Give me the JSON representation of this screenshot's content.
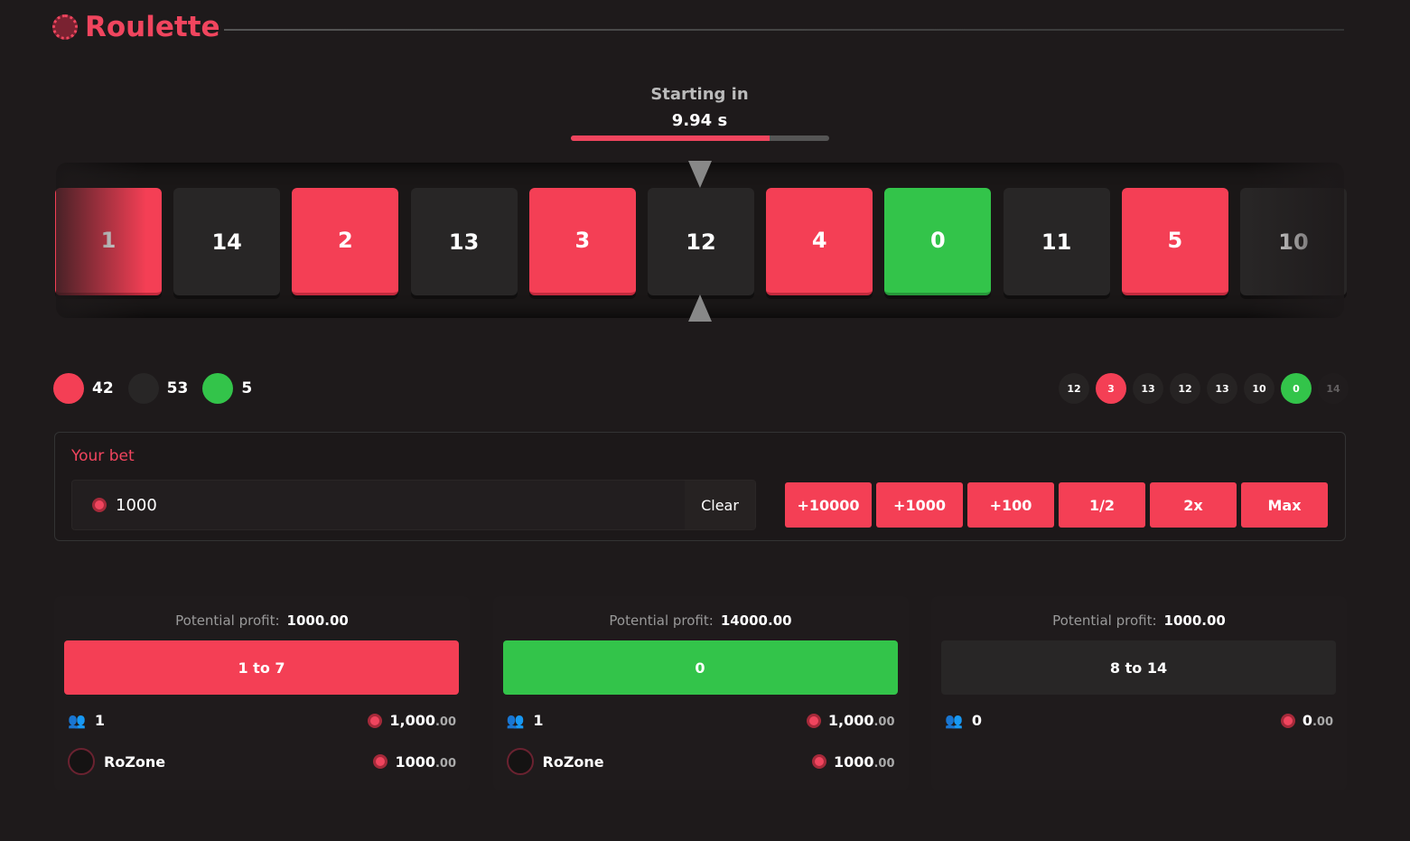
{
  "header": {
    "title": "Roulette",
    "logo": "roulette-wheel-icon"
  },
  "countdown": {
    "label": "Starting in",
    "time": "9.94 s",
    "progress_percent": 77
  },
  "wheel": {
    "tiles": [
      {
        "n": "1",
        "c": "red"
      },
      {
        "n": "14",
        "c": "black"
      },
      {
        "n": "2",
        "c": "red"
      },
      {
        "n": "13",
        "c": "black"
      },
      {
        "n": "3",
        "c": "red"
      },
      {
        "n": "12",
        "c": "black"
      },
      {
        "n": "4",
        "c": "red"
      },
      {
        "n": "0",
        "c": "green"
      },
      {
        "n": "11",
        "c": "black"
      },
      {
        "n": "5",
        "c": "red"
      },
      {
        "n": "10",
        "c": "black"
      }
    ]
  },
  "stats": {
    "red": "42",
    "black": "53",
    "green": "5"
  },
  "history": [
    {
      "n": "12",
      "c": "black"
    },
    {
      "n": "3",
      "c": "red"
    },
    {
      "n": "13",
      "c": "black"
    },
    {
      "n": "12",
      "c": "black"
    },
    {
      "n": "13",
      "c": "black"
    },
    {
      "n": "10",
      "c": "black"
    },
    {
      "n": "0",
      "c": "green"
    },
    {
      "n": "14",
      "c": "black"
    }
  ],
  "bet": {
    "label": "Your bet",
    "value": "1000",
    "clear": "Clear",
    "quick": [
      "+10000",
      "+1000",
      "+100",
      "1/2",
      "2x",
      "Max"
    ]
  },
  "columns": [
    {
      "profit_label": "Potential profit:",
      "profit": "1000.00",
      "button": "1 to 7",
      "color": "red",
      "players": "1",
      "total": "1,000",
      "total_dec": ".00",
      "bets": [
        {
          "user": "RoZone",
          "amount": "1000",
          "dec": ".00"
        }
      ]
    },
    {
      "profit_label": "Potential profit:",
      "profit": "14000.00",
      "button": "0",
      "color": "green",
      "players": "1",
      "total": "1,000",
      "total_dec": ".00",
      "bets": [
        {
          "user": "RoZone",
          "amount": "1000",
          "dec": ".00"
        }
      ]
    },
    {
      "profit_label": "Potential profit:",
      "profit": "1000.00",
      "button": "8 to 14",
      "color": "black",
      "players": "0",
      "total": "0",
      "total_dec": ".00",
      "bets": []
    }
  ],
  "colors": {
    "red": "#f43f55",
    "green": "#33c44a",
    "black": "#282626"
  }
}
